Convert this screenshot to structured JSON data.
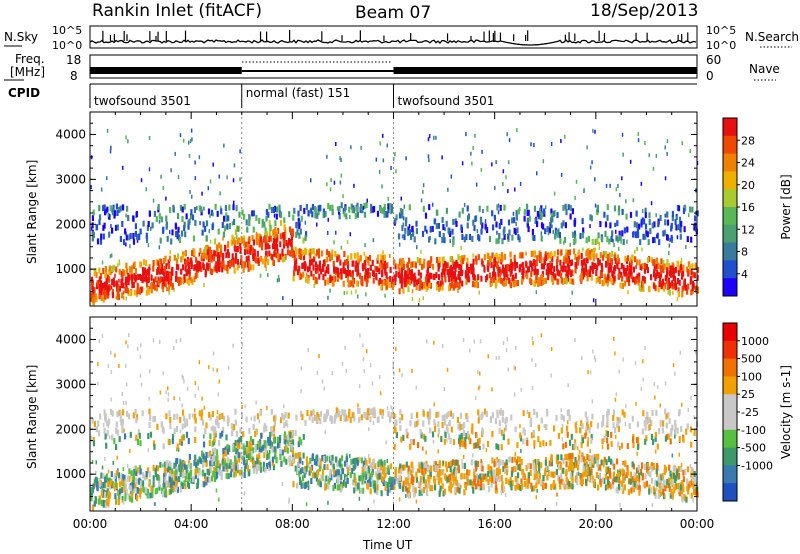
{
  "header": {
    "station": "Rankin Inlet (fitACF)",
    "beam": "Beam 07",
    "date": "18/Sep/2013"
  },
  "nsky_panel": {
    "left_label": "N.Sky",
    "right_label": "N.Search",
    "left_ticks": [
      "10^5",
      "10^0"
    ],
    "right_ticks": [
      "10^5",
      "10^0"
    ]
  },
  "freq_panel": {
    "label_line1": "Freq.",
    "label_line2": "[MHz]",
    "left_ticks": [
      "18",
      "8"
    ],
    "right_label": "Nave",
    "right_ticks": [
      "60",
      "0"
    ]
  },
  "cpid_panel": {
    "label": "CPID",
    "segments": [
      {
        "name": "twofsound 3501",
        "start_hour": 0,
        "end_hour": 6
      },
      {
        "name": "normal (fast) 151",
        "start_hour": 6,
        "end_hour": 12
      },
      {
        "name": "twofsound 3501",
        "start_hour": 12,
        "end_hour": 24
      }
    ]
  },
  "time_axis": {
    "label": "Time UT",
    "ticks": [
      "00:00",
      "04:00",
      "08:00",
      "12:00",
      "16:00",
      "20:00",
      "00:00"
    ],
    "range_hours": [
      0,
      24
    ]
  },
  "chart_data": [
    {
      "type": "heatmap",
      "name": "power",
      "ylabel": "Slant Range [km]",
      "yticks": [
        1000,
        2000,
        3000,
        4000
      ],
      "ylim": [
        180,
        4500
      ],
      "xlim": [
        0,
        24
      ],
      "colorbar": {
        "label": "Power [dB]",
        "ticks": [
          4,
          8,
          12,
          16,
          20,
          24,
          28
        ],
        "range": [
          0,
          32
        ],
        "colors": [
          "#1e00ff",
          "#2050d0",
          "#3a7a9a",
          "#4aa070",
          "#58b858",
          "#a8cc30",
          "#f0b000",
          "#f08000",
          "#f04800",
          "#e81010"
        ]
      }
    },
    {
      "type": "heatmap",
      "name": "velocity",
      "ylabel": "Slant Range [km]",
      "yticks": [
        1000,
        2000,
        3000,
        4000
      ],
      "ylim": [
        180,
        4500
      ],
      "xlim": [
        0,
        24
      ],
      "colorbar": {
        "label": "Velocity [m s-1]",
        "ticks": [
          1000,
          500,
          100,
          25,
          -25,
          -100,
          -500,
          -1000
        ],
        "colors": [
          "#2050c0",
          "#3a7ab0",
          "#3c9a6a",
          "#58c040",
          "#c8c8c8",
          "#c8c8c8",
          "#f0a000",
          "#f07000",
          "#f03000",
          "#e80000"
        ]
      }
    }
  ]
}
